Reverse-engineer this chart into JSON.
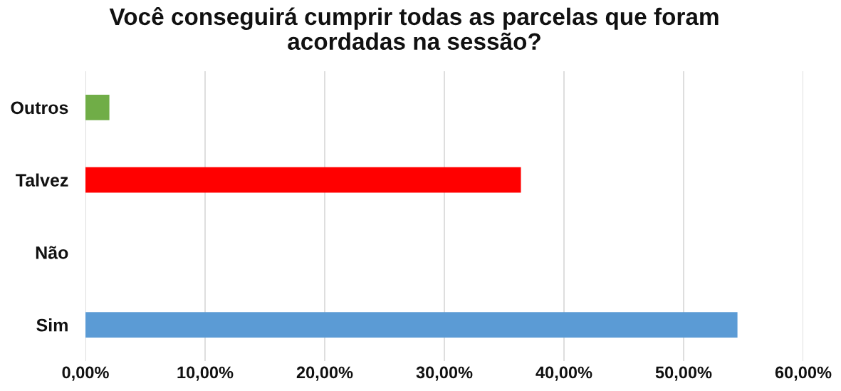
{
  "chart_data": {
    "type": "bar",
    "orientation": "horizontal",
    "title": "Você conseguirá cumprir todas as parcelas que foram\nacordadas na sessão?",
    "categories": [
      "Outros",
      "Talvez",
      "Não",
      "Sim"
    ],
    "values": [
      2.0,
      36.4,
      0,
      54.5
    ],
    "colors": [
      "#70ad47",
      "#ff0000",
      "#ed7d31",
      "#5b9bd5"
    ],
    "xlim": [
      0,
      60
    ],
    "xticks": [
      {
        "value": 0,
        "label": "0,00%"
      },
      {
        "value": 10,
        "label": "10,00%"
      },
      {
        "value": 20,
        "label": "20,00%"
      },
      {
        "value": 30,
        "label": "30,00%"
      },
      {
        "value": 40,
        "label": "40,00%"
      },
      {
        "value": 50,
        "label": "50,00%"
      },
      {
        "value": 60,
        "label": "60,00%"
      }
    ],
    "grid": "x",
    "legend": false
  }
}
